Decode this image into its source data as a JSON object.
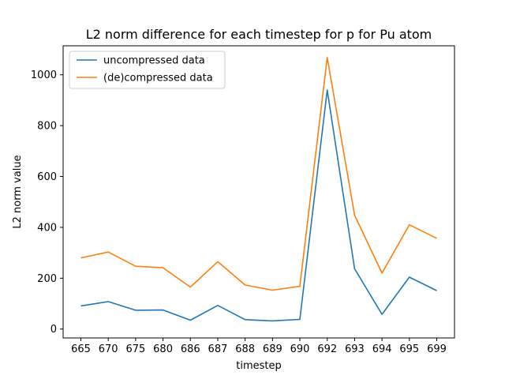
{
  "chart_data": {
    "type": "line",
    "title": "L2 norm difference for each timestep for p for Pu atom",
    "xlabel": "timestep",
    "ylabel": "L2 norm value",
    "categories": [
      "665",
      "670",
      "675",
      "680",
      "686",
      "687",
      "688",
      "689",
      "690",
      "692",
      "693",
      "694",
      "695",
      "699"
    ],
    "ylim": [
      -35,
      1114
    ],
    "yticks": [
      0,
      200,
      400,
      600,
      800,
      1000
    ],
    "legend_position": "top-left",
    "grid": false,
    "series": [
      {
        "name": "uncompressed data",
        "color": "#1f77b4",
        "values": [
          91,
          108,
          74,
          75,
          35,
          93,
          37,
          32,
          38,
          940,
          237,
          58,
          204,
          151
        ]
      },
      {
        "name": "(de)compressed data",
        "color": "#ff7f0e",
        "values": [
          280,
          303,
          247,
          241,
          165,
          265,
          173,
          153,
          168,
          1068,
          448,
          220,
          410,
          357
        ]
      }
    ]
  }
}
